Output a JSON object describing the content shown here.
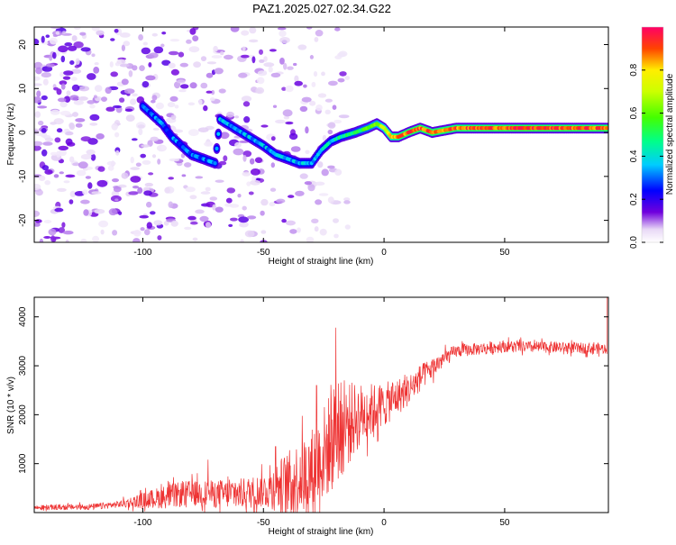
{
  "title": "PAZ1.2025.027.02.34.G22",
  "chart_data": [
    {
      "type": "heatmap",
      "xlabel": "Height of straight line (km)",
      "ylabel": "Frequency (Hz)",
      "xlim": [
        -145,
        93
      ],
      "ylim": [
        -25,
        24
      ],
      "x_ticks": [
        -100,
        -50,
        0,
        50
      ],
      "y_ticks": [
        -20,
        -10,
        0,
        10,
        20
      ],
      "colorbar": {
        "label": "Normalized spectral amplitude",
        "range": [
          0,
          1
        ],
        "ticks": [
          0.0,
          0.2,
          0.4,
          0.6,
          0.8
        ]
      },
      "ridge": [
        {
          "x": -100,
          "y": 6
        },
        {
          "x": -96,
          "y": 4
        },
        {
          "x": -92,
          "y": 2
        },
        {
          "x": -88,
          "y": -1
        },
        {
          "x": -84,
          "y": -3
        },
        {
          "x": -80,
          "y": -5
        },
        {
          "x": -75,
          "y": -6
        },
        {
          "x": -70,
          "y": -7
        },
        {
          "x": -68,
          "y": 3
        },
        {
          "x": -62,
          "y": 1
        },
        {
          "x": -56,
          "y": -1
        },
        {
          "x": -50,
          "y": -3
        },
        {
          "x": -45,
          "y": -5
        },
        {
          "x": -40,
          "y": -6
        },
        {
          "x": -35,
          "y": -7
        },
        {
          "x": -30,
          "y": -7
        },
        {
          "x": -26,
          "y": -4
        },
        {
          "x": -22,
          "y": -2
        },
        {
          "x": -18,
          "y": -1
        },
        {
          "x": -12,
          "y": 0
        },
        {
          "x": -7,
          "y": 1
        },
        {
          "x": -3,
          "y": 2
        },
        {
          "x": 0,
          "y": 1
        },
        {
          "x": 3,
          "y": -1
        },
        {
          "x": 6,
          "y": -1
        },
        {
          "x": 10,
          "y": 0
        },
        {
          "x": 15,
          "y": 1
        },
        {
          "x": 20,
          "y": 0
        },
        {
          "x": 30,
          "y": 1
        },
        {
          "x": 45,
          "y": 1
        },
        {
          "x": 60,
          "y": 1
        },
        {
          "x": 75,
          "y": 1
        },
        {
          "x": 93,
          "y": 1
        }
      ],
      "ridge_strength": [
        0.28,
        0.3,
        0.3,
        0.3,
        0.3,
        0.3,
        0.3,
        0.3,
        0.35,
        0.35,
        0.35,
        0.35,
        0.35,
        0.35,
        0.35,
        0.35,
        0.4,
        0.4,
        0.45,
        0.5,
        0.55,
        0.6,
        0.7,
        0.8,
        0.85,
        0.9,
        0.9,
        0.9,
        0.88,
        0.9,
        0.92,
        0.9,
        0.9
      ]
    },
    {
      "type": "line",
      "xlabel": "Height of straight line (km)",
      "ylabel": "SNR (10 * v/v)",
      "xlim": [
        -145,
        93
      ],
      "ylim": [
        0,
        4400
      ],
      "x_ticks": [
        -100,
        -50,
        0,
        50
      ],
      "y_ticks": [
        1000,
        2000,
        3000,
        4000
      ],
      "color": "#ee3333",
      "envelope": [
        {
          "x": -145,
          "y": 100
        },
        {
          "x": -120,
          "y": 120
        },
        {
          "x": -110,
          "y": 170
        },
        {
          "x": -100,
          "y": 250
        },
        {
          "x": -90,
          "y": 330
        },
        {
          "x": -80,
          "y": 400
        },
        {
          "x": -70,
          "y": 380
        },
        {
          "x": -60,
          "y": 380
        },
        {
          "x": -50,
          "y": 450
        },
        {
          "x": -40,
          "y": 600
        },
        {
          "x": -30,
          "y": 850
        },
        {
          "x": -25,
          "y": 1200
        },
        {
          "x": -20,
          "y": 1600
        },
        {
          "x": -15,
          "y": 1800
        },
        {
          "x": -10,
          "y": 2000
        },
        {
          "x": -5,
          "y": 2100
        },
        {
          "x": 0,
          "y": 2200
        },
        {
          "x": 5,
          "y": 2350
        },
        {
          "x": 10,
          "y": 2500
        },
        {
          "x": 15,
          "y": 2750
        },
        {
          "x": 20,
          "y": 2950
        },
        {
          "x": 25,
          "y": 3150
        },
        {
          "x": 30,
          "y": 3300
        },
        {
          "x": 40,
          "y": 3350
        },
        {
          "x": 50,
          "y": 3400
        },
        {
          "x": 60,
          "y": 3380
        },
        {
          "x": 70,
          "y": 3380
        },
        {
          "x": 80,
          "y": 3360
        },
        {
          "x": 93,
          "y": 3350
        }
      ],
      "noise": [
        {
          "x": -145,
          "y": 50
        },
        {
          "x": -110,
          "y": 70
        },
        {
          "x": -90,
          "y": 250
        },
        {
          "x": -70,
          "y": 280
        },
        {
          "x": -50,
          "y": 350
        },
        {
          "x": -40,
          "y": 650
        },
        {
          "x": -30,
          "y": 900
        },
        {
          "x": -20,
          "y": 1100
        },
        {
          "x": -10,
          "y": 650
        },
        {
          "x": 0,
          "y": 450
        },
        {
          "x": 10,
          "y": 330
        },
        {
          "x": 20,
          "y": 220
        },
        {
          "x": 30,
          "y": 130
        },
        {
          "x": 93,
          "y": 110
        }
      ],
      "peaks": [
        {
          "x": -73,
          "y": 1080
        },
        {
          "x": -45,
          "y": 1350
        },
        {
          "x": -20,
          "y": 3780
        },
        {
          "x": -28,
          "y": 2600
        }
      ],
      "final_spike": {
        "x": 92.5,
        "y": 4450
      }
    }
  ]
}
